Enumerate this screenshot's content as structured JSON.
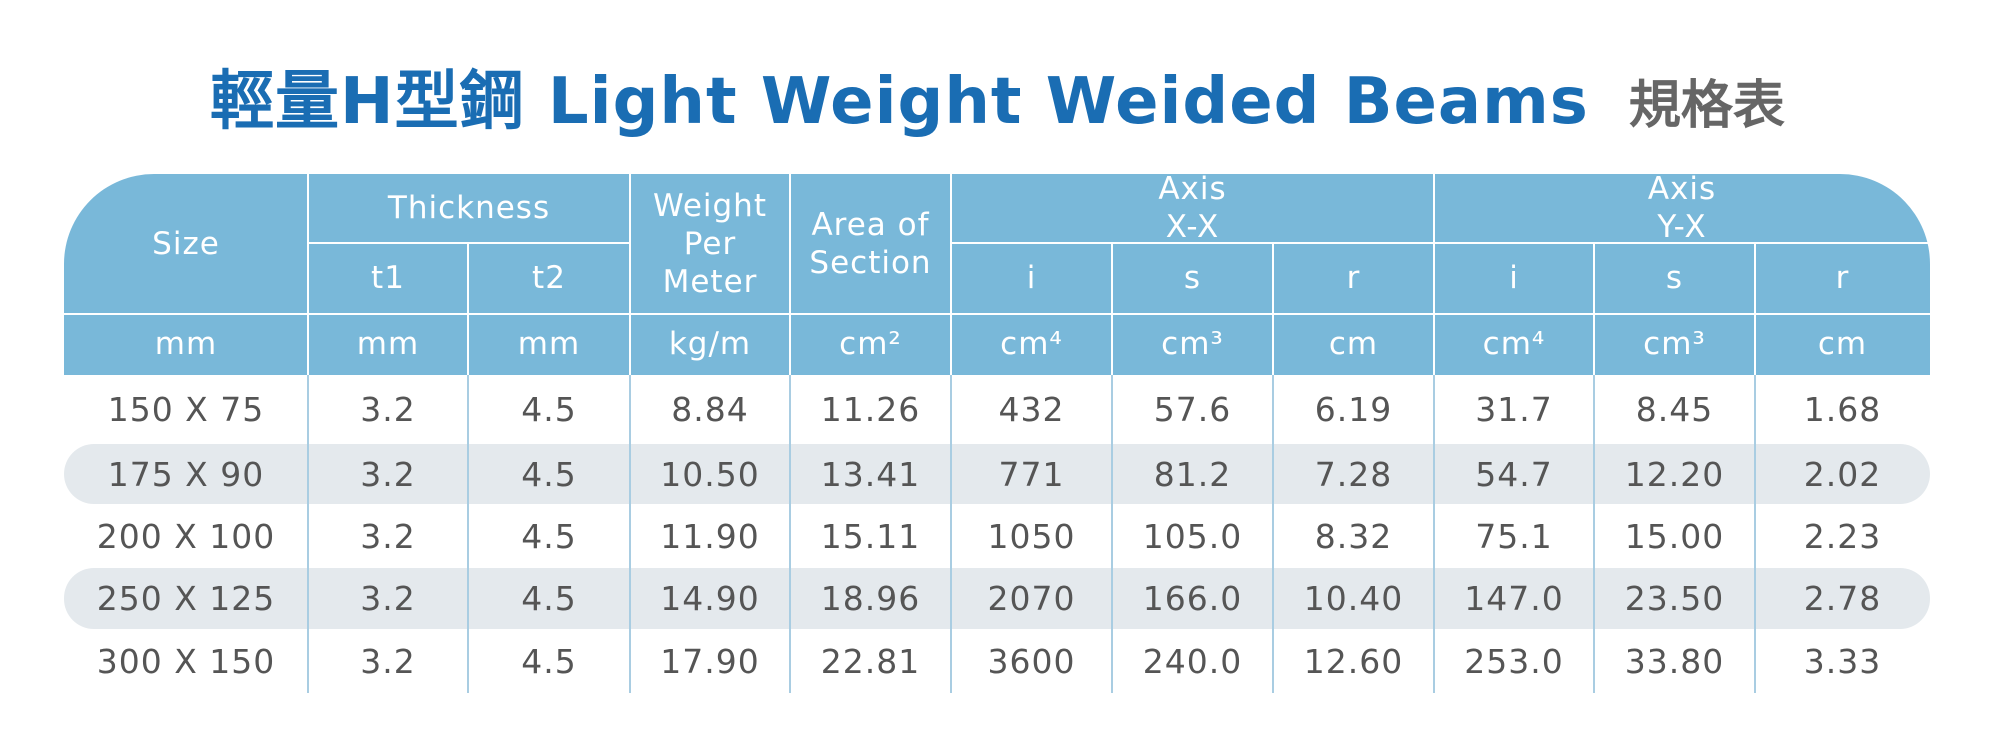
{
  "title": {
    "main": "輕量H型鋼 Light Weight Weided Beams",
    "suffix": "規格表"
  },
  "header": {
    "size": "Size",
    "thickness": "Thickness",
    "t1": "t1",
    "t2": "t2",
    "weight": "Weight Per Meter",
    "area": "Area of Section",
    "axis_x": "Axis X-X",
    "axis_y": "Axis Y-X",
    "x_cols": [
      "i",
      "s",
      "r"
    ],
    "y_cols": [
      "i",
      "s",
      "r"
    ]
  },
  "units": [
    "mm",
    "mm",
    "mm",
    "kg/m",
    "cm²",
    "cm⁴",
    "cm³",
    "cm",
    "cm⁴",
    "cm³",
    "cm"
  ],
  "rows": [
    [
      "150 X 75",
      "3.2",
      "4.5",
      "8.84",
      "11.26",
      "432",
      "57.6",
      "6.19",
      "31.7",
      "8.45",
      "1.68"
    ],
    [
      "175 X 90",
      "3.2",
      "4.5",
      "10.50",
      "13.41",
      "771",
      "81.2",
      "7.28",
      "54.7",
      "12.20",
      "2.02"
    ],
    [
      "200 X 100",
      "3.2",
      "4.5",
      "11.90",
      "15.11",
      "1050",
      "105.0",
      "8.32",
      "75.1",
      "15.00",
      "2.23"
    ],
    [
      "250 X 125",
      "3.2",
      "4.5",
      "14.90",
      "18.96",
      "2070",
      "166.0",
      "10.40",
      "147.0",
      "23.50",
      "2.78"
    ],
    [
      "300 X 150",
      "3.2",
      "4.5",
      "17.90",
      "22.81",
      "3600",
      "240.0",
      "12.60",
      "253.0",
      "33.80",
      "3.33"
    ]
  ]
}
